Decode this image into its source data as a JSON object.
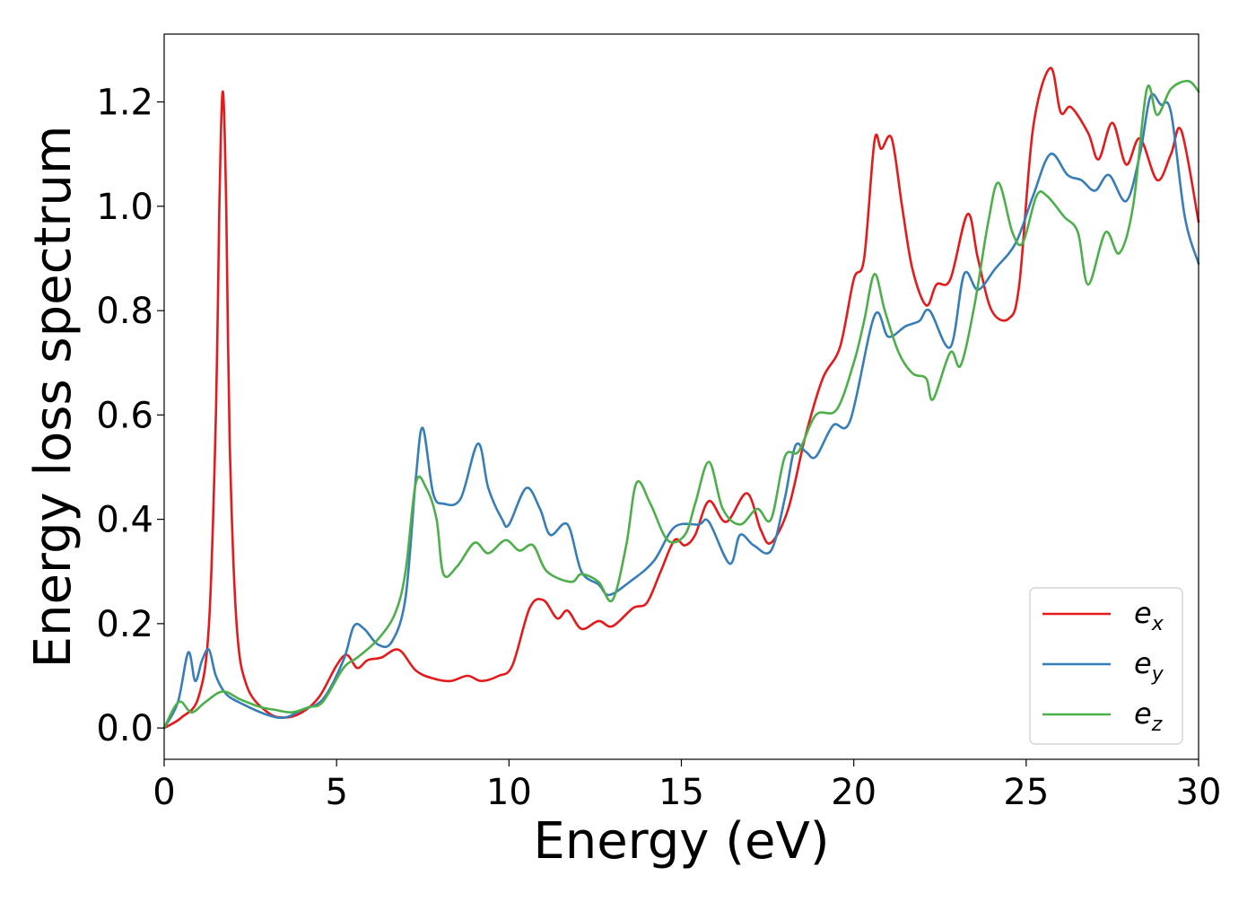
{
  "chart_data": {
    "type": "line",
    "xlabel": "Energy (eV)",
    "ylabel": "Energy loss spectrum",
    "xlim": [
      0,
      30
    ],
    "ylim": [
      -0.06,
      1.33
    ],
    "xticks": [
      0,
      5,
      10,
      15,
      20,
      25,
      30
    ],
    "xtick_labels": [
      "0",
      "5",
      "10",
      "15",
      "20",
      "25",
      "30"
    ],
    "yticks": [
      0.0,
      0.2,
      0.4,
      0.6,
      0.8,
      1.0,
      1.2
    ],
    "ytick_labels": [
      "0.0",
      "0.2",
      "0.4",
      "0.6",
      "0.8",
      "1.0",
      "1.2"
    ],
    "grid": false,
    "legend_position": "bottom-right",
    "series": [
      {
        "name": "e_x",
        "legend_base": "e",
        "legend_sub": "x",
        "color": "#e41a1c",
        "points": [
          [
            0,
            0.0
          ],
          [
            0.5,
            0.02
          ],
          [
            1.0,
            0.06
          ],
          [
            1.3,
            0.2
          ],
          [
            1.5,
            0.6
          ],
          [
            1.6,
            1.0
          ],
          [
            1.7,
            1.22
          ],
          [
            1.8,
            1.0
          ],
          [
            1.9,
            0.55
          ],
          [
            2.1,
            0.2
          ],
          [
            2.4,
            0.08
          ],
          [
            3.0,
            0.03
          ],
          [
            3.5,
            0.02
          ],
          [
            4.0,
            0.03
          ],
          [
            4.5,
            0.06
          ],
          [
            5.0,
            0.12
          ],
          [
            5.3,
            0.14
          ],
          [
            5.6,
            0.115
          ],
          [
            5.9,
            0.13
          ],
          [
            6.3,
            0.135
          ],
          [
            6.8,
            0.15
          ],
          [
            7.3,
            0.11
          ],
          [
            7.8,
            0.095
          ],
          [
            8.3,
            0.09
          ],
          [
            8.8,
            0.1
          ],
          [
            9.2,
            0.09
          ],
          [
            9.7,
            0.1
          ],
          [
            10.1,
            0.12
          ],
          [
            10.6,
            0.23
          ],
          [
            11.0,
            0.245
          ],
          [
            11.4,
            0.21
          ],
          [
            11.7,
            0.225
          ],
          [
            12.1,
            0.19
          ],
          [
            12.6,
            0.205
          ],
          [
            13.0,
            0.195
          ],
          [
            13.6,
            0.23
          ],
          [
            14.0,
            0.24
          ],
          [
            14.4,
            0.3
          ],
          [
            14.8,
            0.36
          ],
          [
            15.1,
            0.35
          ],
          [
            15.4,
            0.37
          ],
          [
            15.8,
            0.435
          ],
          [
            16.3,
            0.395
          ],
          [
            16.9,
            0.45
          ],
          [
            17.3,
            0.38
          ],
          [
            17.6,
            0.355
          ],
          [
            18.1,
            0.42
          ],
          [
            18.6,
            0.56
          ],
          [
            19.1,
            0.67
          ],
          [
            19.6,
            0.73
          ],
          [
            20.0,
            0.86
          ],
          [
            20.3,
            0.9
          ],
          [
            20.6,
            1.125
          ],
          [
            20.8,
            1.11
          ],
          [
            21.1,
            1.13
          ],
          [
            21.4,
            1.0
          ],
          [
            21.7,
            0.88
          ],
          [
            22.1,
            0.81
          ],
          [
            22.4,
            0.85
          ],
          [
            22.8,
            0.86
          ],
          [
            23.3,
            0.985
          ],
          [
            23.6,
            0.9
          ],
          [
            24.0,
            0.8
          ],
          [
            24.5,
            0.785
          ],
          [
            24.8,
            0.85
          ],
          [
            25.2,
            1.15
          ],
          [
            25.7,
            1.265
          ],
          [
            26.0,
            1.18
          ],
          [
            26.3,
            1.19
          ],
          [
            26.8,
            1.14
          ],
          [
            27.1,
            1.09
          ],
          [
            27.5,
            1.16
          ],
          [
            27.9,
            1.08
          ],
          [
            28.3,
            1.13
          ],
          [
            28.8,
            1.05
          ],
          [
            29.2,
            1.1
          ],
          [
            29.5,
            1.145
          ],
          [
            30.0,
            0.97
          ]
        ]
      },
      {
        "name": "e_y",
        "legend_base": "e",
        "legend_sub": "y",
        "color": "#377eb8",
        "points": [
          [
            0,
            0.0
          ],
          [
            0.4,
            0.05
          ],
          [
            0.7,
            0.145
          ],
          [
            0.9,
            0.09
          ],
          [
            1.1,
            0.13
          ],
          [
            1.3,
            0.15
          ],
          [
            1.5,
            0.1
          ],
          [
            1.8,
            0.065
          ],
          [
            2.3,
            0.045
          ],
          [
            3.0,
            0.025
          ],
          [
            3.5,
            0.02
          ],
          [
            4.0,
            0.035
          ],
          [
            4.6,
            0.055
          ],
          [
            5.2,
            0.13
          ],
          [
            5.5,
            0.195
          ],
          [
            5.8,
            0.19
          ],
          [
            6.2,
            0.16
          ],
          [
            6.6,
            0.165
          ],
          [
            7.0,
            0.25
          ],
          [
            7.3,
            0.48
          ],
          [
            7.5,
            0.575
          ],
          [
            7.8,
            0.45
          ],
          [
            8.1,
            0.43
          ],
          [
            8.6,
            0.44
          ],
          [
            9.1,
            0.545
          ],
          [
            9.4,
            0.46
          ],
          [
            9.8,
            0.4
          ],
          [
            10.0,
            0.39
          ],
          [
            10.5,
            0.46
          ],
          [
            10.9,
            0.42
          ],
          [
            11.2,
            0.37
          ],
          [
            11.7,
            0.39
          ],
          [
            12.1,
            0.3
          ],
          [
            12.6,
            0.275
          ],
          [
            12.9,
            0.255
          ],
          [
            13.5,
            0.28
          ],
          [
            14.2,
            0.32
          ],
          [
            14.8,
            0.385
          ],
          [
            15.5,
            0.39
          ],
          [
            15.8,
            0.395
          ],
          [
            16.4,
            0.315
          ],
          [
            16.7,
            0.37
          ],
          [
            17.1,
            0.35
          ],
          [
            17.6,
            0.34
          ],
          [
            18.0,
            0.44
          ],
          [
            18.3,
            0.54
          ],
          [
            18.6,
            0.53
          ],
          [
            18.9,
            0.52
          ],
          [
            19.4,
            0.58
          ],
          [
            19.9,
            0.59
          ],
          [
            20.6,
            0.79
          ],
          [
            21.0,
            0.75
          ],
          [
            21.5,
            0.77
          ],
          [
            21.9,
            0.78
          ],
          [
            22.2,
            0.8
          ],
          [
            22.8,
            0.73
          ],
          [
            23.2,
            0.87
          ],
          [
            23.6,
            0.84
          ],
          [
            24.1,
            0.88
          ],
          [
            24.7,
            0.93
          ],
          [
            25.2,
            1.02
          ],
          [
            25.7,
            1.1
          ],
          [
            26.2,
            1.06
          ],
          [
            26.6,
            1.05
          ],
          [
            27.0,
            1.03
          ],
          [
            27.4,
            1.06
          ],
          [
            27.9,
            1.01
          ],
          [
            28.3,
            1.1
          ],
          [
            28.6,
            1.21
          ],
          [
            28.9,
            1.195
          ],
          [
            29.2,
            1.18
          ],
          [
            29.6,
            0.98
          ],
          [
            30.0,
            0.89
          ]
        ]
      },
      {
        "name": "e_z",
        "legend_base": "e",
        "legend_sub": "z",
        "color": "#4daf4a",
        "points": [
          [
            0,
            0.0
          ],
          [
            0.3,
            0.04
          ],
          [
            0.5,
            0.05
          ],
          [
            0.8,
            0.03
          ],
          [
            1.2,
            0.05
          ],
          [
            1.7,
            0.07
          ],
          [
            2.2,
            0.055
          ],
          [
            2.8,
            0.04
          ],
          [
            3.2,
            0.035
          ],
          [
            3.7,
            0.03
          ],
          [
            4.2,
            0.04
          ],
          [
            4.6,
            0.05
          ],
          [
            5.2,
            0.115
          ],
          [
            5.6,
            0.135
          ],
          [
            6.2,
            0.17
          ],
          [
            6.7,
            0.22
          ],
          [
            7.0,
            0.3
          ],
          [
            7.3,
            0.47
          ],
          [
            7.6,
            0.46
          ],
          [
            7.9,
            0.4
          ],
          [
            8.1,
            0.295
          ],
          [
            8.5,
            0.31
          ],
          [
            9.0,
            0.355
          ],
          [
            9.4,
            0.335
          ],
          [
            9.9,
            0.36
          ],
          [
            10.3,
            0.34
          ],
          [
            10.7,
            0.35
          ],
          [
            11.1,
            0.3
          ],
          [
            11.8,
            0.28
          ],
          [
            12.1,
            0.295
          ],
          [
            12.6,
            0.28
          ],
          [
            13.0,
            0.245
          ],
          [
            13.4,
            0.35
          ],
          [
            13.7,
            0.47
          ],
          [
            14.1,
            0.43
          ],
          [
            14.6,
            0.36
          ],
          [
            15.1,
            0.37
          ],
          [
            15.4,
            0.43
          ],
          [
            15.8,
            0.51
          ],
          [
            16.2,
            0.42
          ],
          [
            16.7,
            0.39
          ],
          [
            17.2,
            0.42
          ],
          [
            17.6,
            0.4
          ],
          [
            18.0,
            0.52
          ],
          [
            18.4,
            0.53
          ],
          [
            18.9,
            0.6
          ],
          [
            19.5,
            0.61
          ],
          [
            20.0,
            0.7
          ],
          [
            20.3,
            0.78
          ],
          [
            20.6,
            0.87
          ],
          [
            20.9,
            0.8
          ],
          [
            21.3,
            0.72
          ],
          [
            21.7,
            0.68
          ],
          [
            22.1,
            0.67
          ],
          [
            22.3,
            0.63
          ],
          [
            22.8,
            0.72
          ],
          [
            23.1,
            0.695
          ],
          [
            23.5,
            0.81
          ],
          [
            23.9,
            0.97
          ],
          [
            24.2,
            1.045
          ],
          [
            24.6,
            0.95
          ],
          [
            24.9,
            0.93
          ],
          [
            25.3,
            1.02
          ],
          [
            25.6,
            1.02
          ],
          [
            26.1,
            0.98
          ],
          [
            26.5,
            0.95
          ],
          [
            26.8,
            0.85
          ],
          [
            27.3,
            0.95
          ],
          [
            27.7,
            0.91
          ],
          [
            28.1,
            1.0
          ],
          [
            28.5,
            1.225
          ],
          [
            28.8,
            1.175
          ],
          [
            29.2,
            1.225
          ],
          [
            29.7,
            1.24
          ],
          [
            30.0,
            1.22
          ]
        ]
      }
    ]
  }
}
